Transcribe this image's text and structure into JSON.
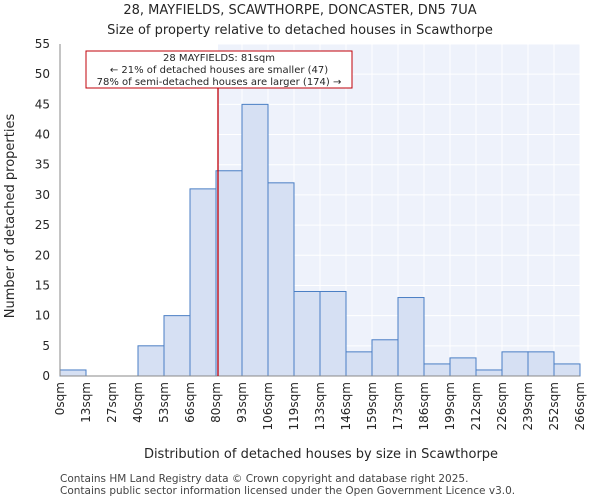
{
  "chart_data": {
    "type": "bar",
    "title_lines": [
      "28, MAYFIELDS, SCAWTHORPE, DONCASTER, DN5 7UA",
      "Size of property relative to detached houses in Scawthorpe"
    ],
    "xlabel": "Distribution of detached houses by size in Scawthorpe",
    "ylabel": "Number of detached properties",
    "bin_edges": [
      0,
      13,
      27,
      40,
      53,
      66,
      80,
      93,
      106,
      119,
      133,
      146,
      159,
      173,
      186,
      199,
      212,
      226,
      239,
      252,
      266
    ],
    "x_tick_labels": [
      "0sqm",
      "13sqm",
      "27sqm",
      "40sqm",
      "53sqm",
      "66sqm",
      "80sqm",
      "93sqm",
      "106sqm",
      "119sqm",
      "133sqm",
      "146sqm",
      "159sqm",
      "173sqm",
      "186sqm",
      "199sqm",
      "212sqm",
      "226sqm",
      "239sqm",
      "252sqm",
      "266sqm"
    ],
    "values": [
      1,
      0,
      0,
      5,
      10,
      31,
      34,
      45,
      32,
      14,
      14,
      4,
      6,
      13,
      2,
      3,
      1,
      4,
      4,
      2
    ],
    "ylim": [
      0,
      55
    ],
    "y_ticks": [
      0,
      5,
      10,
      15,
      20,
      25,
      30,
      35,
      40,
      45,
      50,
      55
    ],
    "grid": true,
    "marker": {
      "value": 81,
      "color": "#c0000a"
    },
    "annotation_lines": [
      "28 MAYFIELDS: 81sqm",
      "← 21% of detached houses are smaller (47)",
      "78% of semi-detached houses are larger (174) →"
    ],
    "colors": {
      "bar_fill": "#d6e0f3",
      "bar_edge": "#4a7ec4",
      "highlight_bg": "#eef2fb",
      "grid": "#ffffff",
      "annotation_border": "#c0000a"
    }
  },
  "footer": {
    "line1": "Contains HM Land Registry data © Crown copyright and database right 2025.",
    "line2": "Contains public sector information licensed under the Open Government Licence v3.0."
  }
}
